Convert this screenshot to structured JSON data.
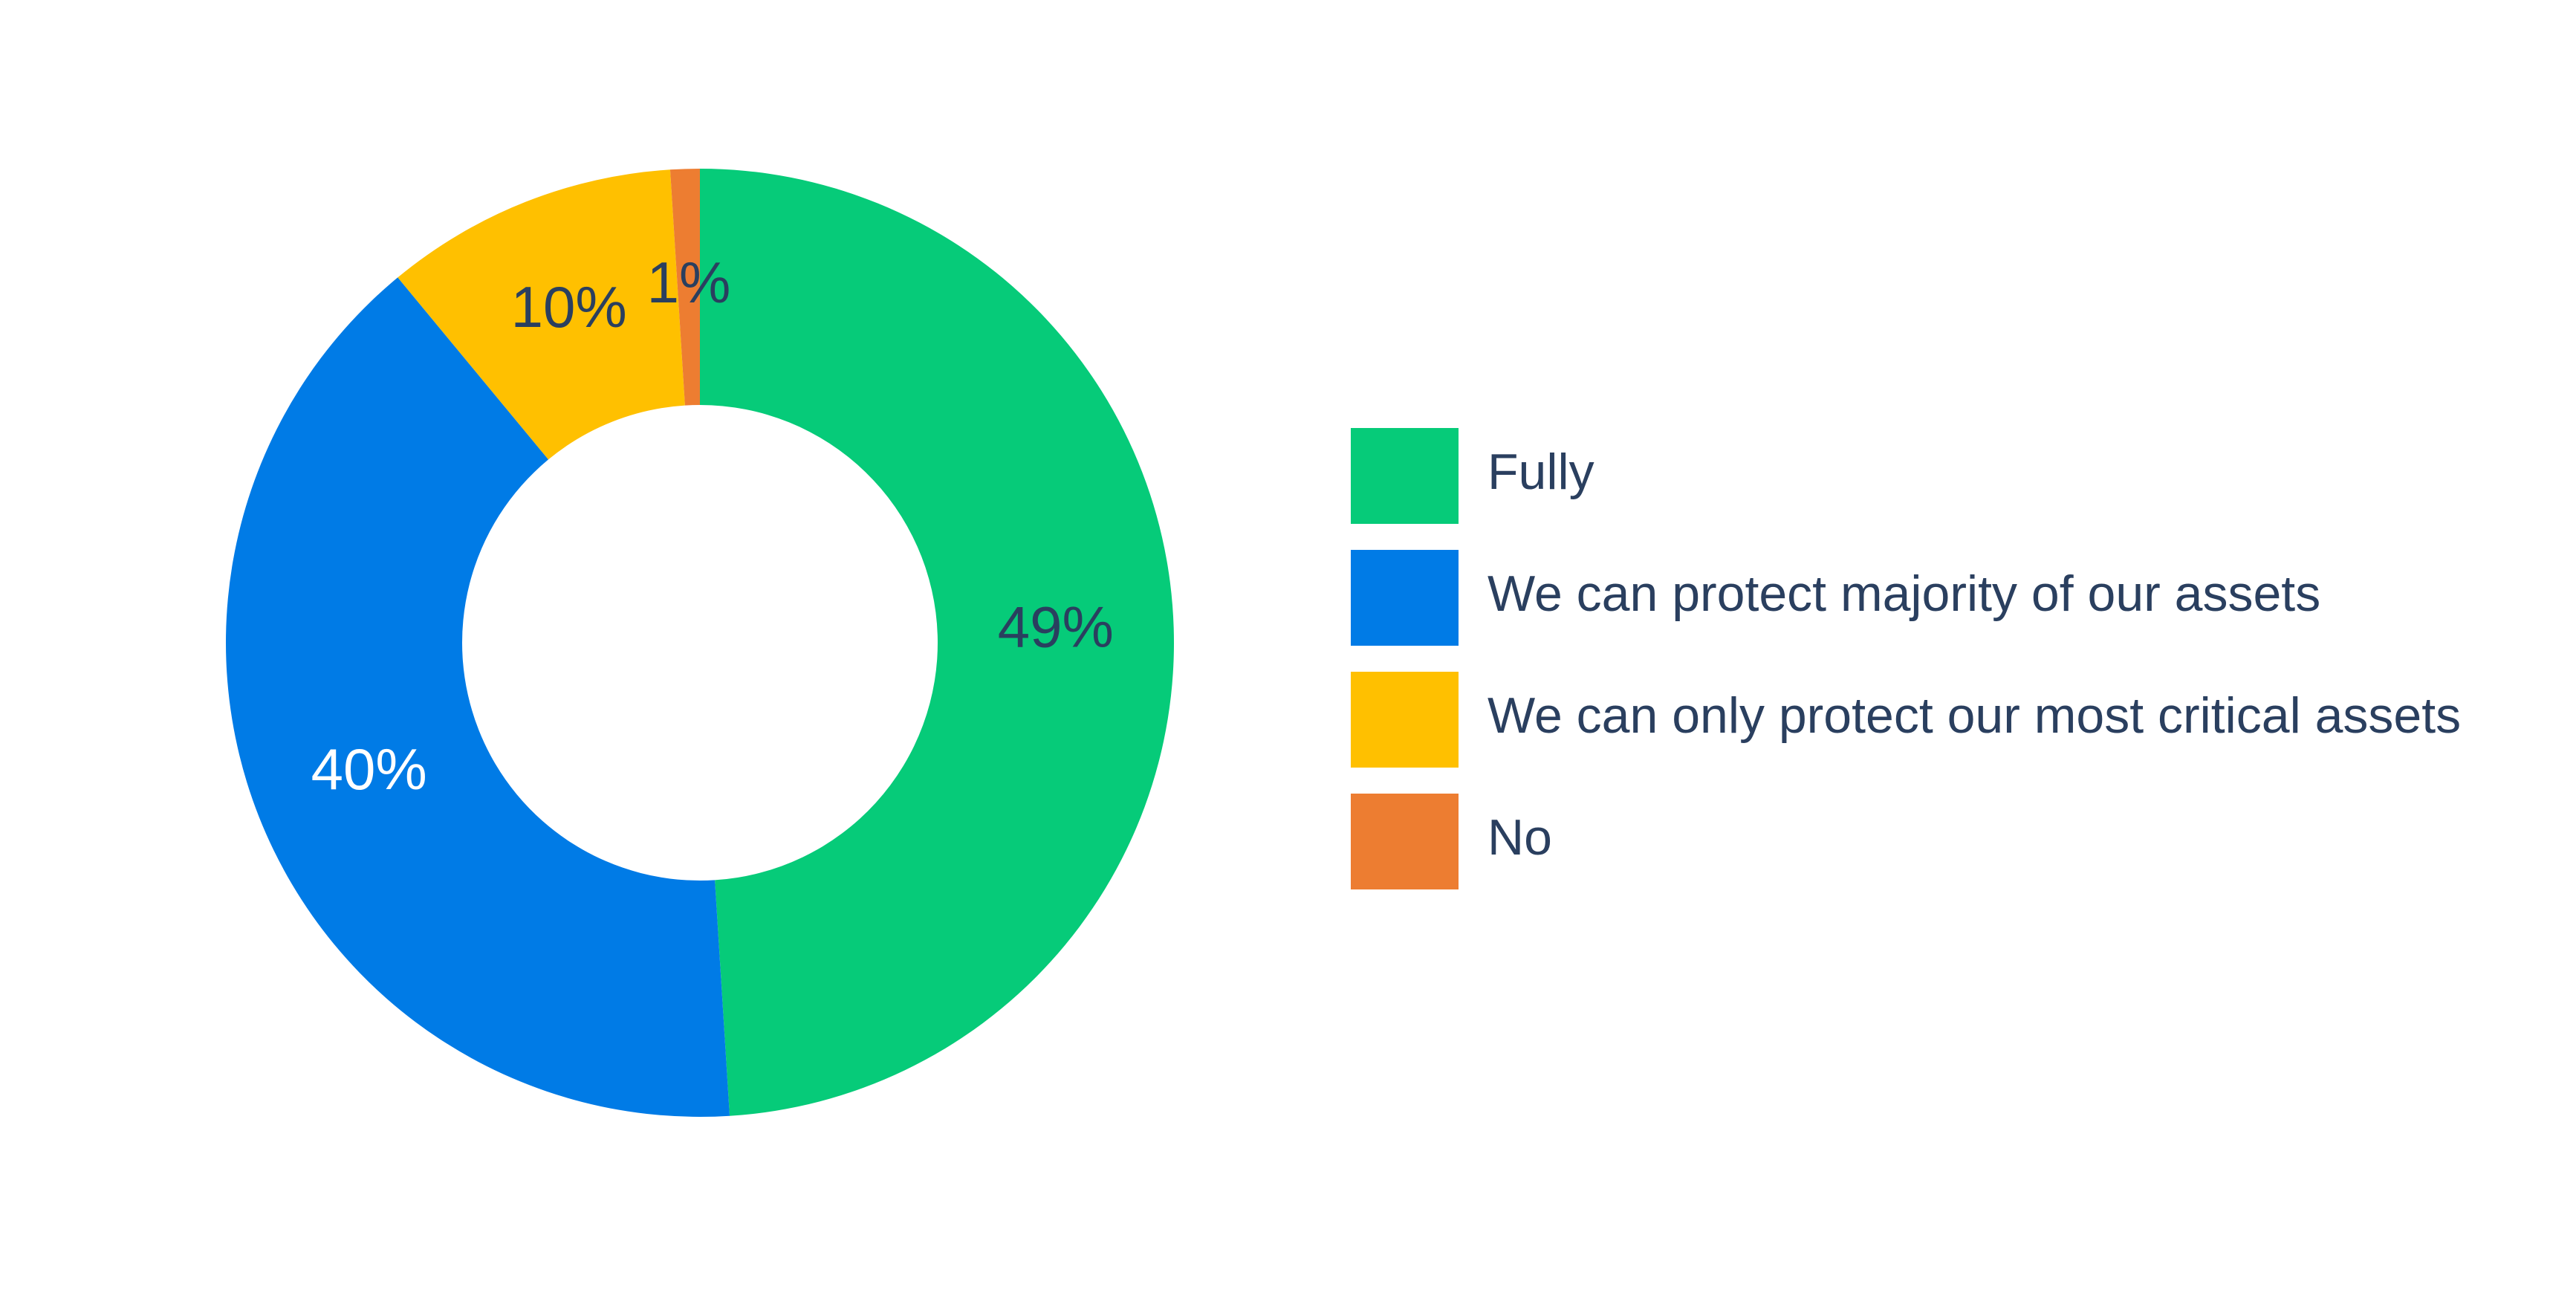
{
  "chart_data": {
    "type": "donut",
    "categories": [
      "Fully",
      "We can protect majority of our assets",
      "We can only protect our most critical assets",
      "No"
    ],
    "values": [
      49,
      40,
      10,
      1
    ],
    "value_labels": [
      "49%",
      "40%",
      "10%",
      "1%"
    ],
    "colors": [
      "#06cb79",
      "#007be6",
      "#ffc000",
      "#ed7d31"
    ],
    "legend": "right"
  }
}
